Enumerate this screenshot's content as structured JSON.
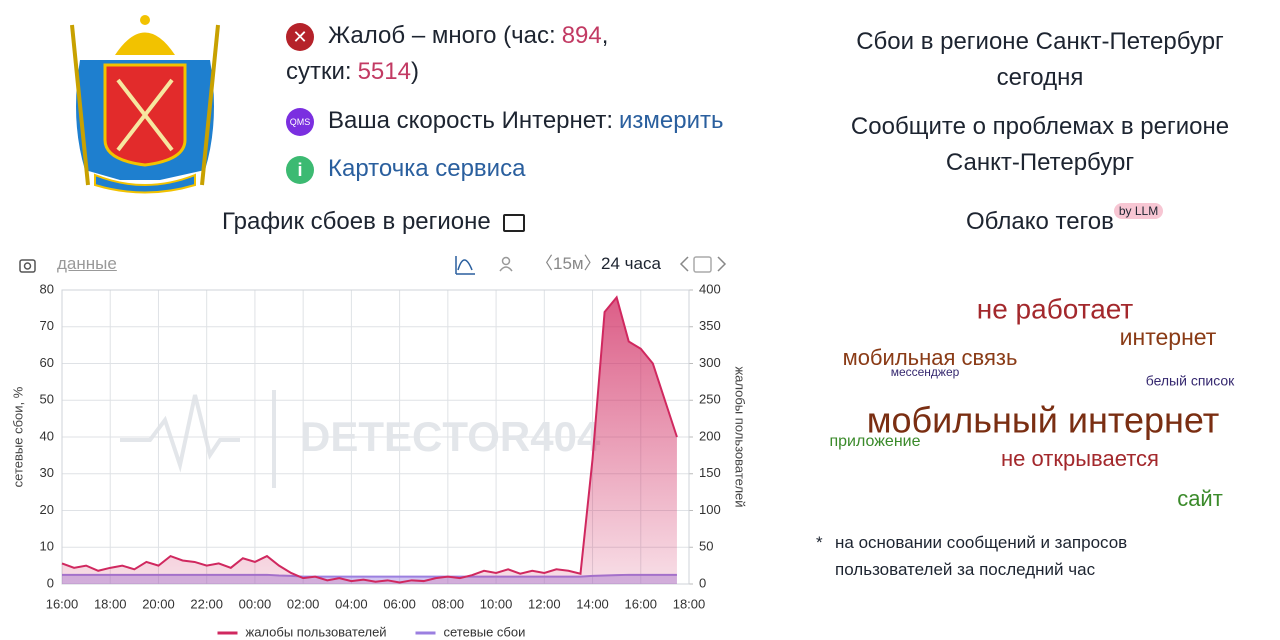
{
  "header": {
    "complaints": {
      "text": "Жалоб – много (час:",
      "hour": 894,
      "sep": ", сутки:",
      "day": 5514,
      "close": ")"
    },
    "speed": {
      "badge": "QMS",
      "label": "Ваша скорость Интернет:",
      "link": "измерить"
    },
    "service_card": "Карточка сервиса",
    "chart_title": "График сбоев в регионе"
  },
  "region": {
    "title": "Сбои в регионе Санкт-Петербург сегодня",
    "report": "Сообщите о проблемах в регионе Санкт-Петербург"
  },
  "toolbar": {
    "data": "данные",
    "interval": "〈15м〉",
    "range": "24 часа"
  },
  "tag_cloud": {
    "title": "Облако тегов",
    "badge": "by LLM",
    "tags": [
      {
        "text": "не работает",
        "color": "#a3282c"
      },
      {
        "text": "интернет",
        "color": "#8a3b16"
      },
      {
        "text": "мобильная связь",
        "color": "#8a3b16"
      },
      {
        "text": "мессенджер",
        "color": "#35286f"
      },
      {
        "text": "белый список",
        "color": "#35286f"
      },
      {
        "text": "мобильный интернет",
        "color": "#7a2e12"
      },
      {
        "text": "приложение",
        "color": "#3a8a2a"
      },
      {
        "text": "не открывается",
        "color": "#a3282c"
      },
      {
        "text": "сайт",
        "color": "#3a8a2a"
      }
    ],
    "note_mark": "*",
    "note": "на основании сообщений и запросов пользователей за последний час"
  },
  "chart_data": {
    "type": "line",
    "ylabel": "сетевые сбои, %",
    "y2label": "жалобы пользователей",
    "watermark": "DETECTOR404",
    "x": [
      "16:00",
      null,
      null,
      null,
      "18:00",
      null,
      null,
      null,
      "20:00",
      null,
      null,
      null,
      "22:00",
      null,
      null,
      null,
      "00:00",
      null,
      null,
      null,
      "02:00",
      null,
      null,
      null,
      "04:00",
      null,
      null,
      null,
      "06:00",
      null,
      null,
      null,
      "08:00",
      null,
      null,
      null,
      "10:00",
      null,
      null,
      null,
      "12:00",
      null,
      null,
      null,
      "14:00",
      null,
      null,
      null,
      "16:00",
      null,
      null,
      null,
      "18:00"
    ],
    "series": [
      {
        "name": "жалобы пользователей",
        "color": "#d0285f",
        "axis": "y2",
        "values": [
          28,
          22,
          25,
          18,
          22,
          25,
          20,
          30,
          25,
          38,
          32,
          30,
          25,
          28,
          22,
          35,
          30,
          38,
          25,
          15,
          8,
          10,
          5,
          8,
          4,
          6,
          3,
          5,
          2,
          5,
          4,
          8,
          10,
          8,
          12,
          18,
          15,
          20,
          14,
          18,
          15,
          20,
          18,
          14,
          170,
          370,
          390,
          330,
          320,
          300,
          250,
          200,
          null
        ]
      },
      {
        "name": "сетевые сбои",
        "color": "#9b7fe0",
        "axis": "y",
        "values": [
          2.5,
          2.5,
          2.5,
          2.5,
          2.5,
          2.5,
          2.5,
          2.5,
          2.5,
          2.5,
          2.5,
          2.5,
          2.5,
          2.5,
          2.5,
          2.5,
          2.5,
          2.5,
          2.3,
          2.2,
          2,
          2,
          2,
          2,
          2,
          2,
          2,
          2,
          2,
          2,
          2,
          2,
          2,
          2,
          2,
          2,
          2,
          2,
          2,
          2,
          2,
          2,
          2,
          2,
          2.2,
          2.3,
          2.4,
          2.5,
          2.5,
          2.5,
          2.5,
          2.5,
          null
        ]
      }
    ],
    "ylim": [
      0,
      80
    ],
    "yticks": [
      0,
      10,
      20,
      30,
      40,
      50,
      60,
      70,
      80
    ],
    "y2lim": [
      0,
      400
    ],
    "y2ticks": [
      0,
      50,
      100,
      150,
      200,
      250,
      300,
      350,
      400
    ],
    "grid": true,
    "legend": "bottom"
  }
}
